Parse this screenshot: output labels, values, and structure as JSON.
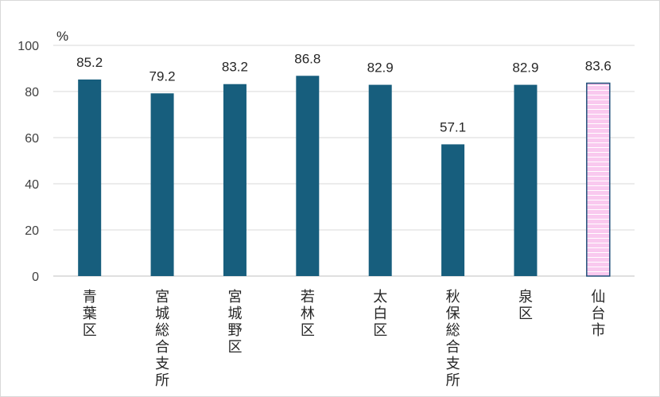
{
  "chart_data": {
    "type": "bar",
    "unit_label": "%",
    "ylim": [
      0,
      100
    ],
    "yticks": [
      0,
      20,
      40,
      60,
      80,
      100
    ],
    "grid": true,
    "categories": [
      "青葉区",
      "宮城総合支所",
      "宮城野区",
      "若林区",
      "太白区",
      "秋保総合支所",
      "泉区",
      "仙台市"
    ],
    "values": [
      85.2,
      79.2,
      83.2,
      86.8,
      82.9,
      57.1,
      82.9,
      83.6
    ],
    "data_labels": [
      "85.2",
      "79.2",
      "83.2",
      "86.8",
      "82.9",
      "57.1",
      "82.9",
      "83.6"
    ],
    "colors": {
      "bar": "#175e7d",
      "highlight_fill": "#f9c9ef",
      "highlight_stripe": "#ffffff",
      "highlight_border": "#1f4e79",
      "grid": "#d9d9d9",
      "axis": "#bfbfbf"
    },
    "highlight_category": "仙台市"
  }
}
